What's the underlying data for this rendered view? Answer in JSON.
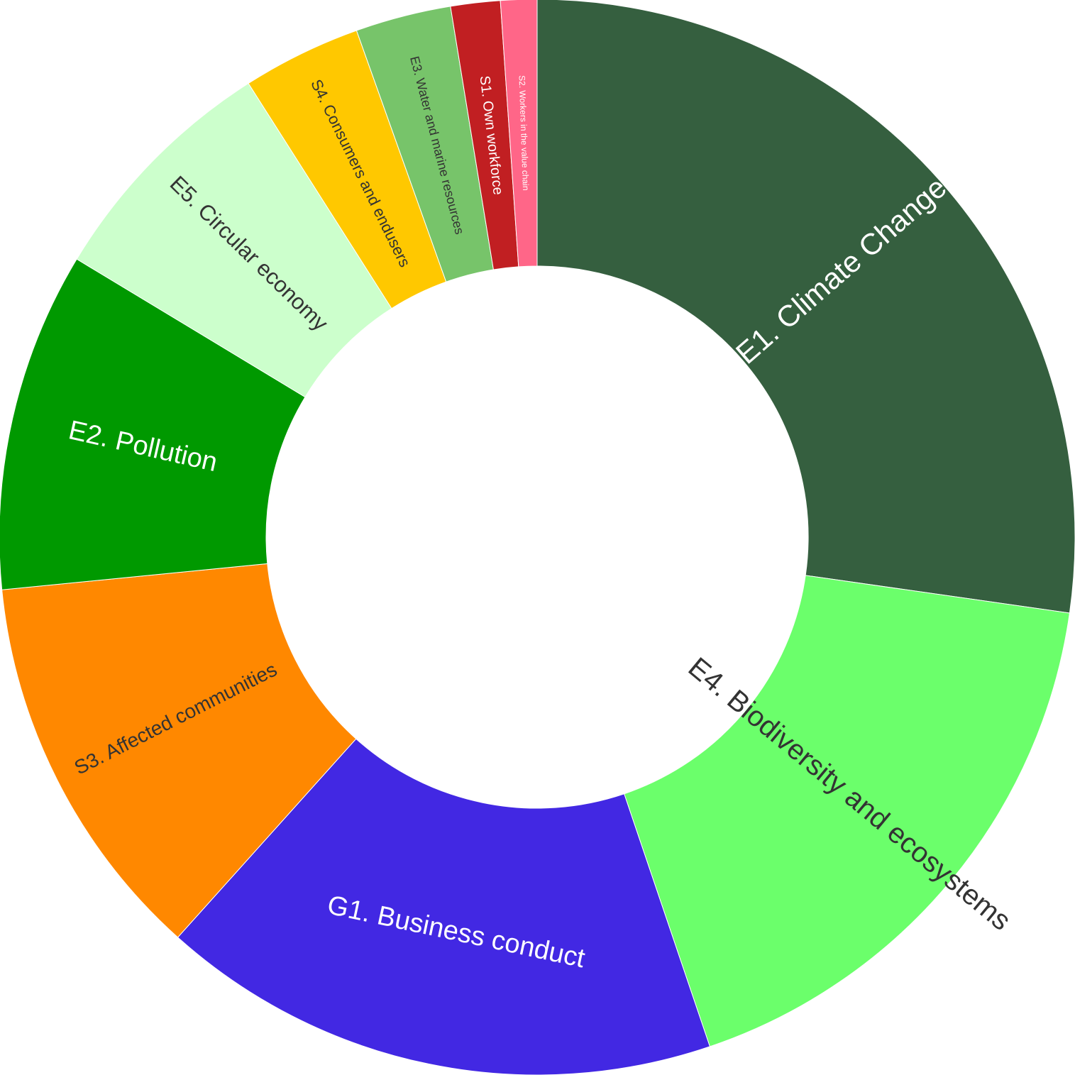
{
  "chart_data": {
    "type": "pie",
    "hole": true,
    "start_angle_deg": 0,
    "direction": "clockwise",
    "slices": [
      {
        "label": "E1. Climate Change",
        "value": 27.5,
        "color": "#355f3f",
        "text_color": "#ffffff"
      },
      {
        "label": "E4. Biodiversity and ecosystems",
        "value": 17.7,
        "color": "#6bff6b",
        "text_color": "#333333"
      },
      {
        "label": "G1. Business conduct",
        "value": 17.0,
        "color": "#4228e3",
        "text_color": "#ffffff"
      },
      {
        "label": "S3. Affected communities",
        "value": 11.9,
        "color": "#ff8800",
        "text_color": "#333333"
      },
      {
        "label": "E2. Pollution",
        "value": 10.3,
        "color": "#009900",
        "text_color": "#ffffff"
      },
      {
        "label": "E5. Circular economy",
        "value": 7.4,
        "color": "#ccffcc",
        "text_color": "#333333"
      },
      {
        "label": "S4. Consumers and endusers",
        "value": 3.6,
        "color": "#ffc800",
        "text_color": "#333333"
      },
      {
        "label": "E3. Water and marine resources",
        "value": 2.9,
        "color": "#77c46a",
        "text_color": "#333333"
      },
      {
        "label": "S1. Own workforce",
        "value": 1.5,
        "color": "#c11f22",
        "text_color": "#ffffff"
      },
      {
        "label": "S2. Workers in the value chain",
        "value": 1.1,
        "color": "#ff6688",
        "text_color": "#ffffff"
      }
    ]
  }
}
